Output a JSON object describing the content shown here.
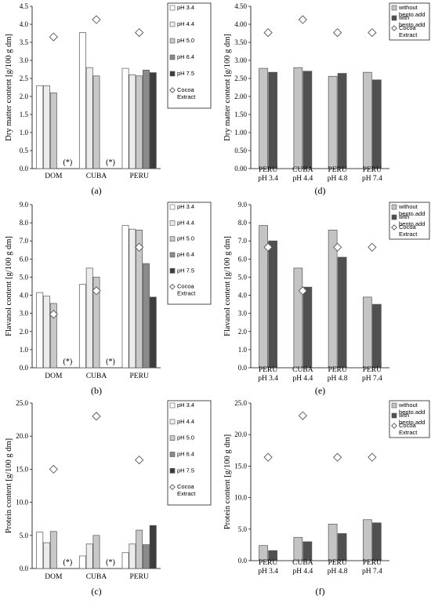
{
  "colors": {
    "pH 3.4": "#ffffff",
    "pH 4.4": "#ececec",
    "pH 5.0": "#c8c8c8",
    "pH 6.4": "#8a8a8a",
    "pH 7.5": "#3c3c3c",
    "without bento.add": "#c4c4c4",
    "with bento.add": "#505050",
    "cocoa": "#ffffff"
  },
  "chart_data": [
    {
      "id": "a",
      "type": "bar",
      "panel_label": "(a)",
      "ylabel": "Dry matter content [g/100 g dm]",
      "ylim": [
        0,
        4.5
      ],
      "yticks": [
        "0.0",
        "0.5",
        "1.0",
        "1.5",
        "2.0",
        "2.5",
        "3.0",
        "3.5",
        "4.0",
        "4.5"
      ],
      "categories": [
        "DOM",
        "CUBA",
        "PERU"
      ],
      "series": [
        {
          "name": "pH 3.4",
          "values": [
            2.3,
            3.77,
            2.78
          ]
        },
        {
          "name": "pH 4.4",
          "values": [
            2.3,
            2.8,
            2.6
          ]
        },
        {
          "name": "pH 5.0",
          "values": [
            2.1,
            2.57,
            2.57
          ]
        },
        {
          "name": "pH 6.4",
          "values": [
            null,
            null,
            2.73
          ]
        },
        {
          "name": "pH 7.5",
          "values": [
            null,
            null,
            2.66
          ]
        }
      ],
      "cocoa": {
        "name": "Cocoa Extract",
        "values": [
          3.65,
          4.13,
          3.77
        ]
      },
      "annotations": [
        "(*)",
        "(*)"
      ]
    },
    {
      "id": "d",
      "type": "bar",
      "panel_label": "(d)",
      "ylabel": "Dry matter content [g/100 g dm]",
      "ylim": [
        0,
        4.5
      ],
      "yticks": [
        "0.00",
        "0.50",
        "1.00",
        "1.50",
        "2.00",
        "2.50",
        "3.00",
        "3.50",
        "4.00",
        "4.50"
      ],
      "categories": [
        "PERU pH 3.4",
        "CUBA pH 4.4",
        "PERU pH 4.8",
        "PERU pH 7.4"
      ],
      "series": [
        {
          "name": "without bento.add",
          "values": [
            2.78,
            2.8,
            2.56,
            2.67
          ]
        },
        {
          "name": "with bento.add",
          "values": [
            2.67,
            2.7,
            2.64,
            2.46
          ]
        }
      ],
      "cocoa": {
        "name": "Cocoa Extract",
        "values": [
          3.77,
          4.13,
          3.77,
          3.77
        ]
      },
      "annotations": []
    },
    {
      "id": "b",
      "type": "bar",
      "panel_label": "(b)",
      "ylabel": "Flavanol content [g/100 g dm]",
      "ylim": [
        0,
        9
      ],
      "yticks": [
        "0.0",
        "1.0",
        "2.0",
        "3.0",
        "4.0",
        "5.0",
        "6.0",
        "7.0",
        "8.0",
        "9.0"
      ],
      "categories": [
        "DOM",
        "CUBA",
        "PERU"
      ],
      "series": [
        {
          "name": "pH 3.4",
          "values": [
            4.15,
            4.6,
            7.85
          ]
        },
        {
          "name": "pH 4.4",
          "values": [
            3.95,
            5.5,
            7.65
          ]
        },
        {
          "name": "pH 5.0",
          "values": [
            3.55,
            5.0,
            7.6
          ]
        },
        {
          "name": "pH 6.4",
          "values": [
            null,
            null,
            5.75
          ]
        },
        {
          "name": "pH 7.5",
          "values": [
            null,
            null,
            3.9
          ]
        }
      ],
      "cocoa": {
        "name": "Cocoa Extract",
        "values": [
          2.95,
          4.25,
          6.65
        ]
      },
      "annotations": [
        "(*)",
        "(*)"
      ]
    },
    {
      "id": "e",
      "type": "bar",
      "panel_label": "(e)",
      "ylabel": "Flavanol content [g/100 g dm]",
      "ylim": [
        0,
        9
      ],
      "yticks": [
        "0.0",
        "1.0",
        "2.0",
        "3.0",
        "4.0",
        "5.0",
        "6.0",
        "7.0",
        "8.0",
        "9.0"
      ],
      "categories": [
        "PERU pH 3.4",
        "CUBA pH 4.4",
        "PERU pH 4.8",
        "PERU pH 7.4"
      ],
      "series": [
        {
          "name": "without bento.add",
          "values": [
            7.85,
            5.5,
            7.6,
            3.9
          ]
        },
        {
          "name": "with bento.add",
          "values": [
            7.0,
            4.45,
            6.1,
            3.5
          ]
        }
      ],
      "cocoa": {
        "name": "Cocoa Extract",
        "values": [
          6.65,
          4.25,
          6.65,
          6.65
        ]
      },
      "annotations": []
    },
    {
      "id": "c",
      "type": "bar",
      "panel_label": "(c)",
      "ylabel": "Protein content [g/100 g dm]",
      "ylim": [
        0,
        25
      ],
      "yticks": [
        "0.0",
        "5.0",
        "10.0",
        "15.0",
        "20.0",
        "25.0"
      ],
      "categories": [
        "DOM",
        "CUBA",
        "PERU"
      ],
      "series": [
        {
          "name": "pH 3.4",
          "values": [
            5.5,
            1.9,
            2.4
          ]
        },
        {
          "name": "pH 4.4",
          "values": [
            3.9,
            3.7,
            3.7
          ]
        },
        {
          "name": "pH 5.0",
          "values": [
            5.6,
            5.0,
            5.8
          ]
        },
        {
          "name": "pH 6.4",
          "values": [
            null,
            null,
            3.6
          ]
        },
        {
          "name": "pH 7.5",
          "values": [
            null,
            null,
            6.5
          ]
        }
      ],
      "cocoa": {
        "name": "Cocoa Extract",
        "values": [
          15.0,
          23.0,
          16.4
        ]
      },
      "annotations": [
        "(*)",
        "(*)"
      ]
    },
    {
      "id": "f",
      "type": "bar",
      "panel_label": "(f)",
      "ylabel": "Protein content [g/100 g dm]",
      "ylim": [
        0,
        25
      ],
      "yticks": [
        "0.0",
        "5.0",
        "10.0",
        "15.0",
        "20.0",
        "25.0"
      ],
      "categories": [
        "PERU pH 3.4",
        "CUBA pH 4.4",
        "PERU pH 4.8",
        "PERU pH 7.4"
      ],
      "series": [
        {
          "name": "without bento.add",
          "values": [
            2.4,
            3.7,
            5.8,
            6.5
          ]
        },
        {
          "name": "with bento.add",
          "values": [
            1.6,
            3.0,
            4.3,
            6.0
          ]
        }
      ],
      "cocoa": {
        "name": "Cocoa Extract",
        "values": [
          16.4,
          23.0,
          16.4,
          16.4
        ]
      },
      "annotations": []
    }
  ]
}
